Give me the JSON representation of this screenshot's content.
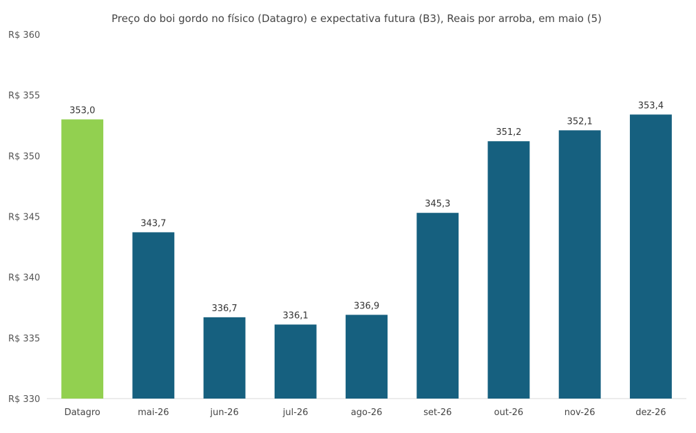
{
  "chart_data": {
    "type": "bar",
    "title": "Preço do boi gordo no físico (Datagro)  e expectativa futura (B3), Reais por arroba, em maio (5)",
    "xlabel": "",
    "ylabel": "",
    "ylim": [
      330,
      360
    ],
    "y_ticks": [
      360,
      355,
      350,
      345,
      340,
      335,
      330
    ],
    "y_tick_labels": [
      "R$ 360",
      "R$ 355",
      "R$ 350",
      "R$ 345",
      "R$ 340",
      "R$ 335",
      "R$ 330"
    ],
    "grid": false,
    "legend": "none",
    "categories": [
      "Datagro",
      "mai-26",
      "jun-26",
      "jul-26",
      "ago-26",
      "set-26",
      "out-26",
      "nov-26",
      "dez-26"
    ],
    "values": [
      353.0,
      343.7,
      336.7,
      336.1,
      336.9,
      345.3,
      351.2,
      352.1,
      353.4
    ],
    "value_labels": [
      "353,0",
      "343,7",
      "336,7",
      "336,1",
      "336,9",
      "345,3",
      "351,2",
      "352,1",
      "353,4"
    ],
    "colors": {
      "highlight": "#92d050",
      "bar": "#16607f",
      "axis": "#d9d9d9"
    },
    "highlight_index": 0
  }
}
